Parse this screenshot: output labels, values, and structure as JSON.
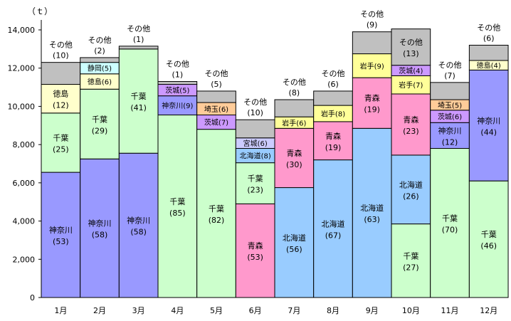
{
  "colors": {
    "神奈川": "#9999ff",
    "千葉": "#ccffcc",
    "徳島": "#ffffcc",
    "静岡": "#ccffff",
    "茨城": "#cc99ff",
    "埼玉": "#ffcc99",
    "北海道": "#99ccff",
    "宮城": "#ccccff",
    "青森": "#ff99cc",
    "岩手": "#ffff99",
    "その他": "#c0c0c0"
  },
  "chart_data": {
    "type": "bar",
    "stacked": true,
    "unit_label": "（ｔ）",
    "ylim": [
      0,
      14000
    ],
    "yticks": [
      "0",
      "2,000",
      "4,000",
      "6,000",
      "8,000",
      "10,000",
      "12,000",
      "14,000"
    ],
    "categories": [
      "1月",
      "2月",
      "3月",
      "4月",
      "5月",
      "6月",
      "7月",
      "8月",
      "9月",
      "10月",
      "11月",
      "12月"
    ],
    "bars": [
      {
        "segments": [
          {
            "name": "神奈川",
            "value": 6550,
            "pct": "(53)"
          },
          {
            "name": "千葉",
            "value": 3100,
            "pct": "(25)"
          },
          {
            "name": "徳島",
            "value": 1500,
            "pct": "(12)"
          },
          {
            "name": "その他",
            "value": 1150,
            "pct": "(10)"
          }
        ]
      },
      {
        "segments": [
          {
            "name": "神奈川",
            "value": 7250,
            "pct": "(58)"
          },
          {
            "name": "千葉",
            "value": 3650,
            "pct": "(29)"
          },
          {
            "name": "徳島",
            "value": 800,
            "pct": "(6)"
          },
          {
            "name": "静岡",
            "value": 600,
            "pct": "(5)"
          },
          {
            "name": "その他",
            "value": 250,
            "pct": "(2)"
          }
        ]
      },
      {
        "segments": [
          {
            "name": "神奈川",
            "value": 7550,
            "pct": "(58)"
          },
          {
            "name": "千葉",
            "value": 5450,
            "pct": "(41)"
          },
          {
            "name": "その他",
            "value": 150,
            "pct": "(1)"
          }
        ]
      },
      {
        "segments": [
          {
            "name": "千葉",
            "value": 9550,
            "pct": "(85)"
          },
          {
            "name": "神奈川",
            "value": 1000,
            "pct": "(9)"
          },
          {
            "name": "茨城",
            "value": 600,
            "pct": "(5)"
          },
          {
            "name": "その他",
            "value": 150,
            "pct": "(1)"
          }
        ]
      },
      {
        "segments": [
          {
            "name": "千葉",
            "value": 8800,
            "pct": "(82)"
          },
          {
            "name": "茨城",
            "value": 750,
            "pct": "(7)"
          },
          {
            "name": "埼玉",
            "value": 650,
            "pct": "(6)"
          },
          {
            "name": "その他",
            "value": 600,
            "pct": "(5)"
          }
        ]
      },
      {
        "segments": [
          {
            "name": "青森",
            "value": 4900,
            "pct": "(53)"
          },
          {
            "name": "千葉",
            "value": 2150,
            "pct": "(23)"
          },
          {
            "name": "北海道",
            "value": 750,
            "pct": "(8)"
          },
          {
            "name": "宮城",
            "value": 550,
            "pct": "(6)"
          },
          {
            "name": "その他",
            "value": 950,
            "pct": "(10)"
          }
        ]
      },
      {
        "segments": [
          {
            "name": "北海道",
            "value": 5750,
            "pct": "(56)"
          },
          {
            "name": "青森",
            "value": 3100,
            "pct": "(30)"
          },
          {
            "name": "岩手",
            "value": 600,
            "pct": "(6)"
          },
          {
            "name": "その他",
            "value": 900,
            "pct": "(8)"
          }
        ]
      },
      {
        "segments": [
          {
            "name": "北海道",
            "value": 7200,
            "pct": "(67)"
          },
          {
            "name": "青森",
            "value": 2000,
            "pct": "(19)"
          },
          {
            "name": "岩手",
            "value": 850,
            "pct": "(8)"
          },
          {
            "name": "その他",
            "value": 750,
            "pct": "(6)"
          }
        ]
      },
      {
        "segments": [
          {
            "name": "北海道",
            "value": 8850,
            "pct": "(63)"
          },
          {
            "name": "青森",
            "value": 2650,
            "pct": "(19)"
          },
          {
            "name": "岩手",
            "value": 1250,
            "pct": "(9)"
          },
          {
            "name": "その他",
            "value": 1150,
            "pct": "(9)"
          }
        ]
      },
      {
        "segments": [
          {
            "name": "千葉",
            "value": 3850,
            "pct": "(27)"
          },
          {
            "name": "北海道",
            "value": 3600,
            "pct": "(26)"
          },
          {
            "name": "青森",
            "value": 3200,
            "pct": "(23)"
          },
          {
            "name": "岩手",
            "value": 950,
            "pct": "(7)"
          },
          {
            "name": "茨城",
            "value": 550,
            "pct": "(4)"
          },
          {
            "name": "その他",
            "value": 1900,
            "pct": "(13)"
          }
        ]
      },
      {
        "segments": [
          {
            "name": "千葉",
            "value": 7800,
            "pct": "(70)"
          },
          {
            "name": "神奈川",
            "value": 1350,
            "pct": "(12)"
          },
          {
            "name": "茨城",
            "value": 650,
            "pct": "(6)"
          },
          {
            "name": "埼玉",
            "value": 550,
            "pct": "(5)"
          },
          {
            "name": "その他",
            "value": 900,
            "pct": "(7)"
          }
        ]
      },
      {
        "segments": [
          {
            "name": "千葉",
            "value": 6100,
            "pct": "(46)"
          },
          {
            "name": "神奈川",
            "value": 5800,
            "pct": "(44)"
          },
          {
            "name": "徳島",
            "value": 500,
            "pct": "(4)"
          },
          {
            "name": "その他",
            "value": 800,
            "pct": "(6)"
          }
        ]
      }
    ]
  }
}
